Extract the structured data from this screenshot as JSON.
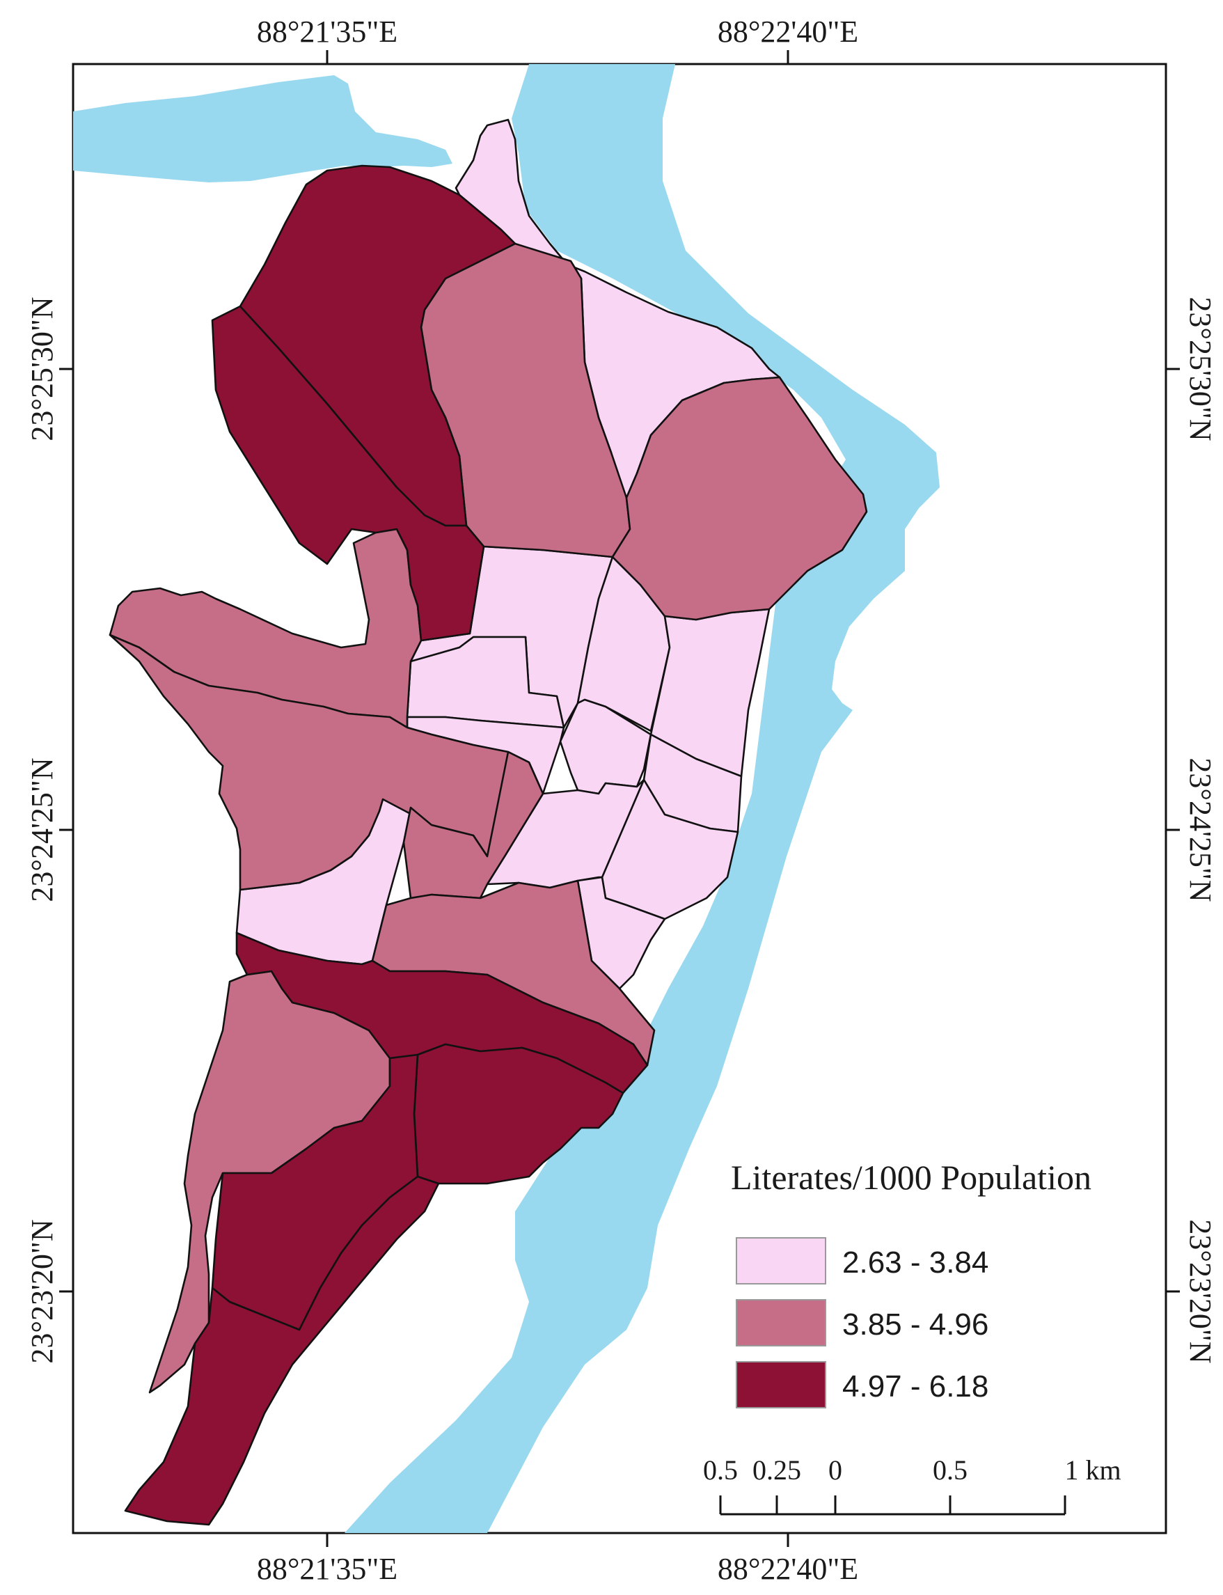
{
  "colors": {
    "water": "#99d9f0",
    "class_low": "#fad6f5",
    "class_mid": "#c66e88",
    "class_high": "#8c1135",
    "frame": "#111111",
    "background": "#ffffff"
  },
  "graticule": {
    "top_left": "88°21'35\"E",
    "top_right": "88°22'40\"E",
    "bottom_left": "88°21'35\"E",
    "bottom_right": "88°22'40\"E",
    "left_top": "23°25'30\"N",
    "left_mid": "23°24'25\"N",
    "left_bottom": "23°23'20\"N",
    "right_top": "23°25'30\"N",
    "right_mid": "23°24'25\"N",
    "right_bottom": "23°23'20\"N"
  },
  "legend": {
    "title": "Literates/1000 Population",
    "classes": [
      {
        "label": "2.63 - 3.84",
        "color": "#fad6f5"
      },
      {
        "label": "3.85 - 4.96",
        "color": "#c66e88"
      },
      {
        "label": "4.97 - 6.18",
        "color": "#8c1135"
      }
    ]
  },
  "scale_bar": {
    "labels": [
      "0.5",
      "0.25",
      "0",
      "0.5",
      "1 km"
    ]
  }
}
